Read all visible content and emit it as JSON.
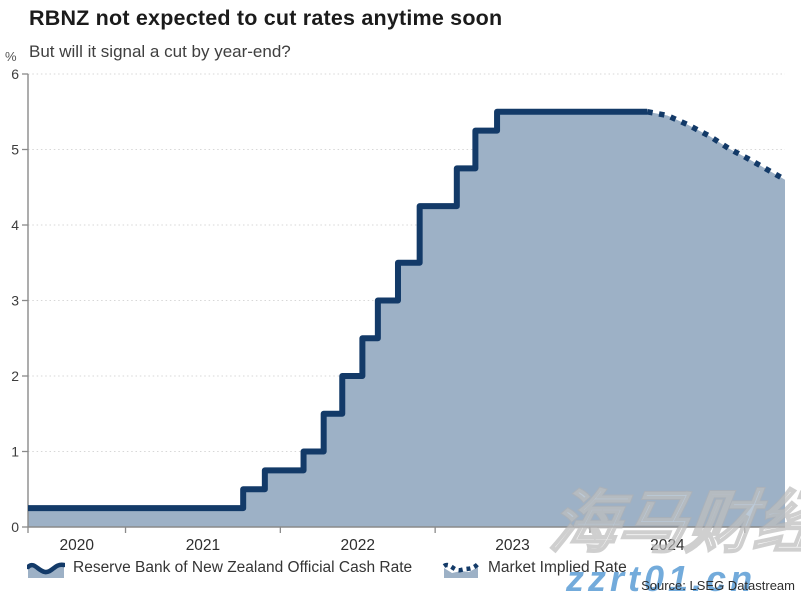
{
  "page": {
    "title": "RBNZ not expected to cut rates anytime soon",
    "subtitle": "But will it signal a cut by year-end?"
  },
  "source_note": "Source: LSEG Datastream",
  "watermarks": {
    "brand_cjk": "海马财经",
    "brand_url": "zzrt01.cn"
  },
  "chart_data": {
    "type": "area",
    "title": "RBNZ not expected to cut rates anytime soon",
    "subtitle": "But will it signal a cut by year-end?",
    "xlabel": "",
    "ylabel": "%",
    "ylim": [
      0,
      6
    ],
    "yticks": [
      0,
      1,
      2,
      3,
      4,
      5,
      6
    ],
    "xlim": [
      2020.37,
      2025.26
    ],
    "xticks": [
      2020.37,
      2021,
      2022,
      2023,
      2024,
      2025
    ],
    "xtick_labels": [
      "2020",
      "2021",
      "2022",
      "2023",
      "2024"
    ],
    "grid": "horizontal-dotted",
    "legend_position": "bottom",
    "fill_color": "#9db1c6",
    "axis_color": "#8a8a8a",
    "gridline_color": "#d7d7d7",
    "tick_label_color": "#3d3d3d",
    "series": [
      {
        "name": "Reserve Bank of New Zealand Official Cash Rate",
        "style": "step-solid",
        "color": "#133a68",
        "points_note": "each point = [decimal year of rate change, new OCR %]; final point marks end of history at same rate",
        "points": [
          [
            2020.37,
            0.25
          ],
          [
            2021.76,
            0.5
          ],
          [
            2021.9,
            0.75
          ],
          [
            2022.15,
            1.0
          ],
          [
            2022.28,
            1.5
          ],
          [
            2022.4,
            2.0
          ],
          [
            2022.53,
            2.5
          ],
          [
            2022.63,
            3.0
          ],
          [
            2022.76,
            3.5
          ],
          [
            2022.9,
            4.25
          ],
          [
            2023.14,
            4.75
          ],
          [
            2023.26,
            5.25
          ],
          [
            2023.4,
            5.5
          ],
          [
            2024.37,
            5.5
          ]
        ]
      },
      {
        "name": "Market Implied Rate",
        "style": "dotted",
        "color": "#133a68",
        "points": [
          [
            2024.37,
            5.5
          ],
          [
            2024.5,
            5.45
          ],
          [
            2024.63,
            5.33
          ],
          [
            2024.77,
            5.18
          ],
          [
            2024.9,
            5.01
          ],
          [
            2025.02,
            4.88
          ],
          [
            2025.14,
            4.74
          ],
          [
            2025.26,
            4.6
          ]
        ]
      }
    ]
  }
}
